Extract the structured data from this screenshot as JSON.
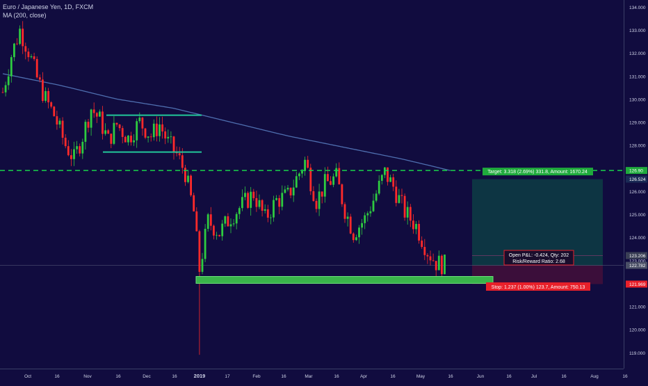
{
  "header": {
    "symbol_title": "Euro / Japanese Yen, 1D, FXCM",
    "indicator_label": "MA (200, close)"
  },
  "colors": {
    "background": "#110c3f",
    "up_candle": "#2ecc40",
    "down_candle": "#ff2a2a",
    "moving_average": "#4f6fb0",
    "target_line": "#19d24a",
    "channel_lines": "#22c79a",
    "support_zone": "#39b54a",
    "profit_zone": "#0d3a44",
    "loss_zone": "#3e0f3a",
    "label_green": "#1faa3c",
    "label_red": "#e8202a",
    "axis_text": "#d0d4e8"
  },
  "chart_data": {
    "type": "candlestick",
    "title": "Euro / Japanese Yen, 1D, FXCM",
    "ylim": [
      118.3,
      134.3
    ],
    "y_ticks": [
      "119.000",
      "120.000",
      "121.000",
      "122.000",
      "123.000",
      "124.000",
      "125.000",
      "126.000",
      "127.000",
      "128.000",
      "129.000",
      "130.000",
      "131.000",
      "132.000",
      "133.000",
      "134.000"
    ],
    "x_tick_labels": [
      "Oct",
      "16",
      "Nov",
      "16",
      "Dec",
      "16",
      "2019",
      "17",
      "Feb",
      "16",
      "Mar",
      "16",
      "Apr",
      "16",
      "May",
      "16",
      "Jun",
      "16",
      "Jul",
      "16",
      "Aug",
      "16"
    ],
    "x_tick_bold": [
      false,
      false,
      false,
      false,
      false,
      false,
      true,
      false,
      false,
      false,
      false,
      false,
      false,
      false,
      false,
      false,
      false,
      false,
      false,
      false,
      false,
      false
    ],
    "price_path": [
      {
        "bar": 0,
        "close": 130.3
      },
      {
        "bar": 3,
        "close": 131.9
      },
      {
        "bar": 6,
        "close": 133.0
      },
      {
        "bar": 9,
        "close": 132.1
      },
      {
        "bar": 12,
        "close": 130.9
      },
      {
        "bar": 15,
        "close": 130.0
      },
      {
        "bar": 18,
        "close": 129.3
      },
      {
        "bar": 22,
        "close": 128.0
      },
      {
        "bar": 25,
        "close": 127.4
      },
      {
        "bar": 28,
        "close": 128.4
      },
      {
        "bar": 31,
        "close": 129.6
      },
      {
        "bar": 34,
        "close": 129.1
      },
      {
        "bar": 37,
        "close": 128.2
      },
      {
        "bar": 40,
        "close": 128.9
      },
      {
        "bar": 44,
        "close": 128.3
      },
      {
        "bar": 48,
        "close": 129.0
      },
      {
        "bar": 52,
        "close": 128.4
      },
      {
        "bar": 55,
        "close": 128.9
      },
      {
        "bar": 58,
        "close": 128.1
      },
      {
        "bar": 61,
        "close": 127.6
      },
      {
        "bar": 64,
        "close": 126.8
      },
      {
        "bar": 67,
        "close": 125.1
      },
      {
        "bar": 69,
        "close": 122.6
      },
      {
        "bar": 72,
        "close": 124.7
      },
      {
        "bar": 76,
        "close": 124.2
      },
      {
        "bar": 80,
        "close": 124.9
      },
      {
        "bar": 84,
        "close": 125.4
      },
      {
        "bar": 88,
        "close": 125.9
      },
      {
        "bar": 92,
        "close": 124.8
      },
      {
        "bar": 96,
        "close": 125.6
      },
      {
        "bar": 100,
        "close": 125.8
      },
      {
        "bar": 104,
        "close": 126.8
      },
      {
        "bar": 106,
        "close": 127.3
      },
      {
        "bar": 110,
        "close": 125.6
      },
      {
        "bar": 113,
        "close": 126.3
      },
      {
        "bar": 117,
        "close": 126.6
      },
      {
        "bar": 120,
        "close": 125.2
      },
      {
        "bar": 123,
        "close": 124.2
      },
      {
        "bar": 127,
        "close": 124.8
      },
      {
        "bar": 131,
        "close": 125.9
      },
      {
        "bar": 134,
        "close": 126.8
      },
      {
        "bar": 137,
        "close": 126.2
      },
      {
        "bar": 141,
        "close": 125.1
      },
      {
        "bar": 145,
        "close": 124.5
      },
      {
        "bar": 149,
        "close": 123.4
      },
      {
        "bar": 152,
        "close": 122.9
      },
      {
        "bar": 155,
        "close": 122.8
      }
    ],
    "wick_extremes": [
      {
        "bar": 69,
        "low": 118.9
      },
      {
        "bar": 6,
        "high": 133.2
      },
      {
        "bar": 106,
        "high": 127.5
      }
    ],
    "moving_average_points": [
      {
        "bar": 0,
        "value": 131.1
      },
      {
        "bar": 20,
        "value": 130.6
      },
      {
        "bar": 40,
        "value": 130.0
      },
      {
        "bar": 60,
        "value": 129.6
      },
      {
        "bar": 80,
        "value": 129.0
      },
      {
        "bar": 100,
        "value": 128.4
      },
      {
        "bar": 120,
        "value": 127.9
      },
      {
        "bar": 140,
        "value": 127.4
      },
      {
        "bar": 157,
        "value": 126.9
      }
    ],
    "annotations": {
      "target_price": 126.9,
      "entry_price": 122.782,
      "stop_price": 121.969,
      "upper_price": 126.524,
      "channel_top": 129.3,
      "channel_bottom": 127.7,
      "support_zone": [
        122.0,
        122.3
      ],
      "secondary_price": 123.206
    },
    "price_tags": {
      "target": "126.90",
      "upper": "126.524",
      "secondary": "123.206",
      "entry": "122.782",
      "stop": "121.969"
    }
  },
  "labels": {
    "target": "Target: 3.318 (2.69%) 331.8, Amount: 1670.24",
    "open_pnl": "Open P&L: -0.424, Qty: 202",
    "risk_reward": "Risk/Reward Ratio: 2.68",
    "stop": "Stop: 1.237 (1.00%) 123.7, Amount: 750.13"
  }
}
